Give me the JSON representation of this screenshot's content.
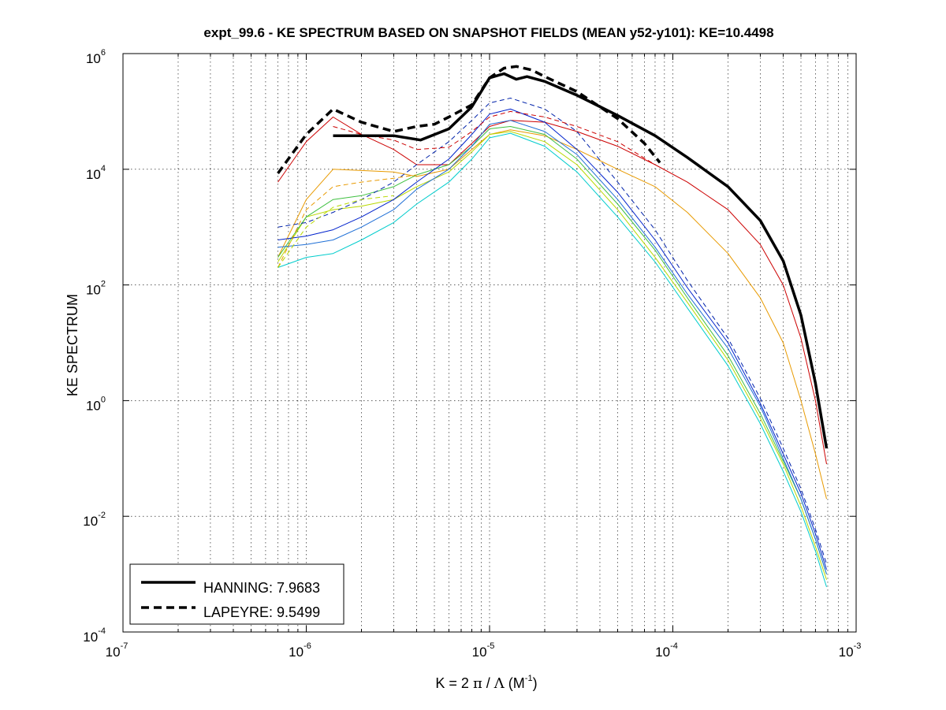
{
  "chart_data": {
    "type": "line",
    "title": "expt_99.6 - KE SPECTRUM BASED ON SNAPSHOT FIELDS (MEAN y52-y101): KE=10.4498",
    "xlabel": {
      "prefix": "K = 2 ",
      "pi": "π",
      "mid": " / ",
      "lambda": "Λ",
      "unit_open": "  (M",
      "unit_exp": "-1",
      "unit_close": ")"
    },
    "ylabel": "KE SPECTRUM",
    "xscale": "log",
    "yscale": "log",
    "xlim": [
      1e-07,
      0.001
    ],
    "ylim": [
      0.0001,
      1000000.0
    ],
    "grid": true,
    "legend_position": "bottom-left",
    "x_ticks": [
      {
        "base": "10",
        "exp": "-7",
        "value": 1e-07
      },
      {
        "base": "10",
        "exp": "-6",
        "value": 1e-06
      },
      {
        "base": "10",
        "exp": "-5",
        "value": 1e-05
      },
      {
        "base": "10",
        "exp": "-4",
        "value": 0.0001
      },
      {
        "base": "10",
        "exp": "-3",
        "value": 0.001
      }
    ],
    "y_ticks": [
      {
        "base": "10",
        "exp": "-4",
        "value": 0.0001
      },
      {
        "base": "10",
        "exp": "-2",
        "value": 0.01
      },
      {
        "base": "10",
        "exp": "0",
        "value": 1
      },
      {
        "base": "10",
        "exp": "2",
        "value": 100.0
      },
      {
        "base": "10",
        "exp": "4",
        "value": 10000.0
      },
      {
        "base": "10",
        "exp": "6",
        "value": 1000000.0
      }
    ],
    "series": [
      {
        "name": "HANNING: 7.9683",
        "style": "solid-thick",
        "color": "#000000",
        "legend": true,
        "points": [
          [
            1.4e-06,
            38000
          ],
          [
            3e-06,
            38000
          ],
          [
            4.2e-06,
            32000
          ],
          [
            6e-06,
            50000
          ],
          [
            8e-06,
            120000
          ],
          [
            1e-05,
            380000
          ],
          [
            1.2e-05,
            450000
          ],
          [
            1.4e-05,
            360000
          ],
          [
            1.6e-05,
            400000
          ],
          [
            2e-05,
            330000
          ],
          [
            3e-05,
            190000
          ],
          [
            5e-05,
            85000
          ],
          [
            8e-05,
            38000
          ],
          [
            0.00012,
            16000
          ],
          [
            0.0002,
            5000
          ],
          [
            0.0003,
            1300
          ],
          [
            0.0004,
            260
          ],
          [
            0.0005,
            30
          ],
          [
            0.0006,
            2
          ],
          [
            0.00069,
            0.15
          ]
        ]
      },
      {
        "name": "LAPEYRE: 9.5499",
        "style": "dashed-thick",
        "color": "#000000",
        "legend": true,
        "points": [
          [
            7e-07,
            8500
          ],
          [
            1e-06,
            40000
          ],
          [
            1.4e-06,
            110000
          ],
          [
            2e-06,
            65000
          ],
          [
            3e-06,
            45000
          ],
          [
            4e-06,
            55000
          ],
          [
            5e-06,
            60000
          ],
          [
            6e-06,
            80000
          ],
          [
            8e-06,
            130000
          ],
          [
            1e-05,
            380000
          ],
          [
            1.2e-05,
            560000
          ],
          [
            1.4e-05,
            600000
          ],
          [
            1.7e-05,
            520000
          ],
          [
            2e-05,
            400000
          ],
          [
            3e-05,
            220000
          ],
          [
            4e-05,
            120000
          ],
          [
            5e-05,
            75000
          ],
          [
            7e-05,
            28000
          ],
          [
            8.5e-05,
            13000
          ]
        ]
      },
      {
        "style": "thin",
        "color": "#cc0000",
        "points": [
          [
            7e-07,
            6000
          ],
          [
            1e-06,
            30000
          ],
          [
            1.4e-06,
            80000
          ],
          [
            2e-06,
            40000
          ],
          [
            3e-06,
            22000
          ],
          [
            4e-06,
            12000
          ],
          [
            6e-06,
            12000
          ],
          [
            8e-06,
            28000
          ],
          [
            1e-05,
            55000
          ],
          [
            1.3e-05,
            70000
          ],
          [
            2e-05,
            65000
          ],
          [
            3e-05,
            45000
          ],
          [
            5e-05,
            25000
          ],
          [
            8e-05,
            12000
          ],
          [
            0.00012,
            6000
          ],
          [
            0.0002,
            2000
          ],
          [
            0.0003,
            500
          ],
          [
            0.0004,
            100
          ],
          [
            0.0005,
            12
          ],
          [
            0.0006,
            1
          ],
          [
            0.00069,
            0.08
          ]
        ]
      },
      {
        "style": "thin",
        "color": "#e89a00",
        "points": [
          [
            7e-07,
            300
          ],
          [
            1e-06,
            3000
          ],
          [
            1.4e-06,
            10000
          ],
          [
            2e-06,
            9500
          ],
          [
            3e-06,
            9000
          ],
          [
            4e-06,
            7500
          ],
          [
            6e-06,
            10000
          ],
          [
            8e-06,
            22000
          ],
          [
            1e-05,
            40000
          ],
          [
            1.3e-05,
            48000
          ],
          [
            2e-05,
            38000
          ],
          [
            3e-05,
            22000
          ],
          [
            5e-05,
            10000
          ],
          [
            8e-05,
            5000
          ],
          [
            0.00012,
            1800
          ],
          [
            0.0002,
            350
          ],
          [
            0.0003,
            60
          ],
          [
            0.0004,
            10
          ],
          [
            0.0005,
            1
          ],
          [
            0.0006,
            0.12
          ],
          [
            0.00069,
            0.02
          ]
        ]
      },
      {
        "style": "thin",
        "color": "#b8d800",
        "points": [
          [
            7e-07,
            250
          ],
          [
            1e-06,
            1500
          ],
          [
            1.4e-06,
            2000
          ],
          [
            2e-06,
            2300
          ],
          [
            3e-06,
            3000
          ],
          [
            4e-06,
            5000
          ],
          [
            6e-06,
            9000
          ],
          [
            8e-06,
            20000
          ],
          [
            1e-05,
            40000
          ],
          [
            1.3e-05,
            45000
          ],
          [
            2e-05,
            30000
          ],
          [
            3e-05,
            12000
          ],
          [
            5e-05,
            2000
          ],
          [
            8e-05,
            300
          ],
          [
            0.00012,
            50
          ],
          [
            0.0002,
            5
          ],
          [
            0.0003,
            0.5
          ],
          [
            0.0004,
            0.08
          ],
          [
            0.0005,
            0.015
          ],
          [
            0.0006,
            0.003
          ],
          [
            0.00069,
            0.0008
          ]
        ]
      },
      {
        "style": "thin",
        "color": "#3fc040",
        "points": [
          [
            7e-07,
            300
          ],
          [
            1e-06,
            1500
          ],
          [
            1.4e-06,
            3000
          ],
          [
            2e-06,
            3500
          ],
          [
            3e-06,
            5000
          ],
          [
            4e-06,
            8000
          ],
          [
            6e-06,
            12000
          ],
          [
            8e-06,
            25000
          ],
          [
            1e-05,
            50000
          ],
          [
            1.3e-05,
            55000
          ],
          [
            2e-05,
            40000
          ],
          [
            3e-05,
            15000
          ],
          [
            5e-05,
            2500
          ],
          [
            8e-05,
            400
          ],
          [
            0.00012,
            60
          ],
          [
            0.0002,
            6
          ],
          [
            0.0003,
            0.6
          ],
          [
            0.0004,
            0.09
          ],
          [
            0.0005,
            0.02
          ],
          [
            0.0006,
            0.004
          ],
          [
            0.00069,
            0.001
          ]
        ]
      },
      {
        "style": "thin",
        "color": "#00cccc",
        "points": [
          [
            7e-07,
            200
          ],
          [
            1e-06,
            300
          ],
          [
            1.4e-06,
            350
          ],
          [
            2e-06,
            600
          ],
          [
            3e-06,
            1200
          ],
          [
            4e-06,
            2500
          ],
          [
            6e-06,
            6000
          ],
          [
            8e-06,
            15000
          ],
          [
            1e-05,
            35000
          ],
          [
            1.3e-05,
            42000
          ],
          [
            2e-05,
            25000
          ],
          [
            3e-05,
            9000
          ],
          [
            5e-05,
            1500
          ],
          [
            8e-05,
            250
          ],
          [
            0.00012,
            40
          ],
          [
            0.0002,
            4
          ],
          [
            0.0003,
            0.4
          ],
          [
            0.0004,
            0.06
          ],
          [
            0.0005,
            0.012
          ],
          [
            0.0006,
            0.0025
          ],
          [
            0.00069,
            0.0006
          ]
        ]
      },
      {
        "style": "thin",
        "color": "#1f6fd6",
        "points": [
          [
            7e-07,
            450
          ],
          [
            1e-06,
            500
          ],
          [
            1.4e-06,
            600
          ],
          [
            2e-06,
            1000
          ],
          [
            3e-06,
            2000
          ],
          [
            4e-06,
            4500
          ],
          [
            6e-06,
            10000
          ],
          [
            8e-06,
            25000
          ],
          [
            1e-05,
            60000
          ],
          [
            1.3e-05,
            70000
          ],
          [
            2e-05,
            45000
          ],
          [
            3e-05,
            18000
          ],
          [
            5e-05,
            3000
          ],
          [
            8e-05,
            450
          ],
          [
            0.00012,
            70
          ],
          [
            0.0002,
            8
          ],
          [
            0.0003,
            0.8
          ],
          [
            0.0004,
            0.1
          ],
          [
            0.0005,
            0.02
          ],
          [
            0.0006,
            0.004
          ],
          [
            0.00069,
            0.001
          ]
        ]
      },
      {
        "style": "thin",
        "color": "#0022cc",
        "points": [
          [
            7e-07,
            600
          ],
          [
            1e-06,
            700
          ],
          [
            1.4e-06,
            900
          ],
          [
            2e-06,
            1500
          ],
          [
            3e-06,
            3000
          ],
          [
            4e-06,
            6000
          ],
          [
            6e-06,
            15000
          ],
          [
            8e-06,
            40000
          ],
          [
            1e-05,
            90000
          ],
          [
            1.3e-05,
            110000
          ],
          [
            2e-05,
            65000
          ],
          [
            3e-05,
            22000
          ],
          [
            5e-05,
            4000
          ],
          [
            8e-05,
            600
          ],
          [
            0.00012,
            90
          ],
          [
            0.0002,
            10
          ],
          [
            0.0003,
            0.9
          ],
          [
            0.0004,
            0.12
          ],
          [
            0.0005,
            0.025
          ],
          [
            0.0006,
            0.005
          ],
          [
            0.00069,
            0.0012
          ]
        ]
      },
      {
        "style": "thin-dashed",
        "color": "#0022aa",
        "points": [
          [
            7e-07,
            1000
          ],
          [
            1e-06,
            1200
          ],
          [
            1.4e-06,
            1800
          ],
          [
            2e-06,
            3000
          ],
          [
            3e-06,
            6000
          ],
          [
            4e-06,
            12000
          ],
          [
            6e-06,
            30000
          ],
          [
            8e-06,
            70000
          ],
          [
            1e-05,
            140000
          ],
          [
            1.3e-05,
            170000
          ],
          [
            2e-05,
            110000
          ],
          [
            3e-05,
            45000
          ],
          [
            5e-05,
            6000
          ],
          [
            8e-05,
            900
          ],
          [
            0.00012,
            120
          ],
          [
            0.0002,
            12
          ],
          [
            0.0003,
            1.1
          ],
          [
            0.0004,
            0.15
          ],
          [
            0.0005,
            0.03
          ],
          [
            0.0006,
            0.006
          ],
          [
            0.00069,
            0.0015
          ]
        ]
      },
      {
        "style": "thin-dashed",
        "color": "#cc0000",
        "points": [
          [
            1.4e-06,
            55000
          ],
          [
            2e-06,
            40000
          ],
          [
            3e-06,
            32000
          ],
          [
            4e-06,
            22000
          ],
          [
            6e-06,
            24000
          ],
          [
            8e-06,
            45000
          ],
          [
            1e-05,
            80000
          ],
          [
            1.3e-05,
            100000
          ],
          [
            2e-05,
            80000
          ],
          [
            3e-05,
            55000
          ],
          [
            5e-05,
            30000
          ],
          [
            8e-05,
            12000
          ]
        ]
      },
      {
        "style": "thin-dashed",
        "color": "#e89a00",
        "points": [
          [
            7e-07,
            200
          ],
          [
            1e-06,
            2000
          ],
          [
            1.4e-06,
            5000
          ],
          [
            2e-06,
            6000
          ],
          [
            3e-06,
            7000
          ],
          [
            4e-06,
            8000
          ]
        ]
      },
      {
        "style": "thin-dashed",
        "color": "#b8d800",
        "points": [
          [
            7e-07,
            200
          ],
          [
            1e-06,
            1000
          ],
          [
            1.4e-06,
            2200
          ],
          [
            2e-06,
            3000
          ],
          [
            3e-06,
            3500
          ]
        ]
      }
    ]
  }
}
